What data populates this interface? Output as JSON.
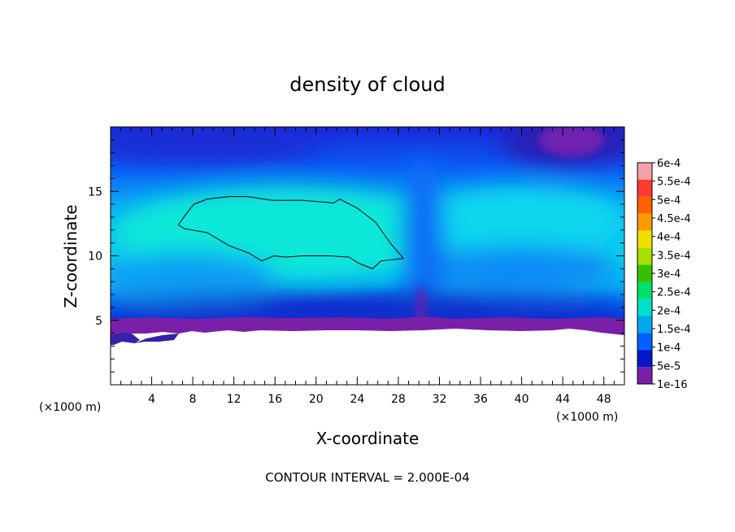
{
  "chart_data": {
    "type": "heatmap",
    "title": "density of cloud",
    "xlabel": "X-coordinate",
    "ylabel": "Z-coordinate",
    "x_unit": "(×1000 m)",
    "y_unit": "(×1000 m)",
    "xlim": [
      0,
      50
    ],
    "ylim": [
      0,
      20
    ],
    "x_ticks": [
      4,
      8,
      12,
      16,
      20,
      24,
      28,
      32,
      36,
      40,
      44,
      48
    ],
    "y_ticks": [
      5,
      10,
      15
    ],
    "footer": "CONTOUR INTERVAL = 2.000E-04",
    "colorbar": {
      "labels": [
        "6e-4",
        "5.5e-4",
        "5e-4",
        "4.5e-4",
        "4e-4",
        "3.5e-4",
        "3e-4",
        "2.5e-4",
        "2e-4",
        "1.5e-4",
        "1e-4",
        "5e-5",
        "1e-16"
      ],
      "colors": [
        "#f5a0a8",
        "#ff3b30",
        "#ff6000",
        "#ff9a00",
        "#f0e000",
        "#a8e000",
        "#38c000",
        "#00e068",
        "#00e0c8",
        "#00a8f0",
        "#0060ff",
        "#0018c8",
        "#7a20a8"
      ]
    },
    "contour_level": 0.00025,
    "contour_outline": [
      [
        6.6,
        12.4
      ],
      [
        7.3,
        13.2
      ],
      [
        8.1,
        14.0
      ],
      [
        9.4,
        14.4
      ],
      [
        11.5,
        14.6
      ],
      [
        13.3,
        14.6
      ],
      [
        15.7,
        14.3
      ],
      [
        18.7,
        14.3
      ],
      [
        21.7,
        14.1
      ],
      [
        22.3,
        14.4
      ],
      [
        24.0,
        13.7
      ],
      [
        25.8,
        12.6
      ],
      [
        27.2,
        11.0
      ],
      [
        28.5,
        9.8
      ],
      [
        26.3,
        9.6
      ],
      [
        25.5,
        9.0
      ],
      [
        24.2,
        9.4
      ],
      [
        23.2,
        9.9
      ],
      [
        21.3,
        10.0
      ],
      [
        18.7,
        10.0
      ],
      [
        17.0,
        9.9
      ],
      [
        15.9,
        10.0
      ],
      [
        14.7,
        9.6
      ],
      [
        13.5,
        10.2
      ],
      [
        11.5,
        10.8
      ],
      [
        9.4,
        11.8
      ],
      [
        7.2,
        12.1
      ]
    ]
  }
}
